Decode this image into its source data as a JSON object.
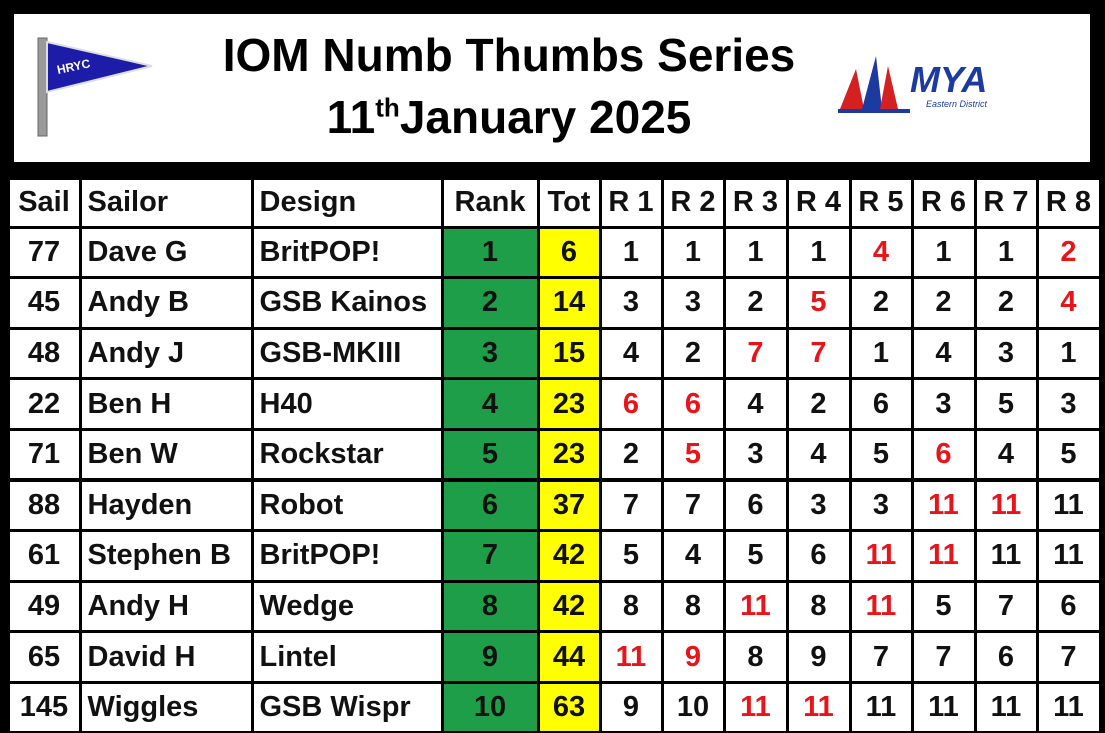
{
  "header": {
    "title": "IOM Numb Thumbs Series",
    "date": {
      "day": "11",
      "suffix": "th",
      "rest": "January 2025"
    },
    "club_logo": "HRYC",
    "association_logo": {
      "name": "MYA",
      "region": "Eastern District"
    }
  },
  "table": {
    "columns": [
      "Sail",
      "Sailor",
      "Design",
      "Rank",
      "Tot",
      "R 1",
      "R 2",
      "R 3",
      "R 4",
      "R 5",
      "R 6",
      "R 7",
      "R 8"
    ],
    "rank_color": "#1e9e48",
    "total_color": "#ffff00",
    "discard_color": "#e8141a",
    "rows": [
      {
        "cells": [
          77,
          "Dave G",
          "BritPOP!",
          1,
          6,
          1,
          1,
          1,
          1,
          4,
          1,
          1,
          2
        ],
        "discarded": [
          false,
          false,
          false,
          false,
          true,
          false,
          false,
          true
        ]
      },
      {
        "cells": [
          45,
          "Andy B",
          "GSB Kainos",
          2,
          14,
          3,
          3,
          2,
          5,
          2,
          2,
          2,
          4
        ],
        "discarded": [
          false,
          false,
          false,
          true,
          false,
          false,
          false,
          true
        ]
      },
      {
        "cells": [
          48,
          "Andy J",
          "GSB-MKIII",
          3,
          15,
          4,
          2,
          7,
          7,
          1,
          4,
          3,
          1
        ],
        "discarded": [
          false,
          false,
          true,
          true,
          false,
          false,
          false,
          false
        ]
      },
      {
        "cells": [
          22,
          "Ben H",
          "H40",
          4,
          23,
          6,
          6,
          4,
          2,
          6,
          3,
          5,
          3
        ],
        "discarded": [
          true,
          true,
          false,
          false,
          false,
          false,
          false,
          false
        ]
      },
      {
        "cells": [
          71,
          "Ben W",
          "Rockstar",
          5,
          23,
          2,
          5,
          3,
          4,
          5,
          6,
          4,
          5
        ],
        "discarded": [
          false,
          true,
          false,
          false,
          false,
          true,
          false,
          false
        ]
      },
      {
        "cells": [
          88,
          "Hayden",
          "Robot",
          6,
          37,
          7,
          7,
          6,
          3,
          3,
          11,
          11,
          11
        ],
        "discarded": [
          false,
          false,
          false,
          false,
          false,
          true,
          true,
          false
        ]
      },
      {
        "cells": [
          61,
          "Stephen B",
          "BritPOP!",
          7,
          42,
          5,
          4,
          5,
          6,
          11,
          11,
          11,
          11
        ],
        "discarded": [
          false,
          false,
          false,
          false,
          true,
          true,
          false,
          false
        ]
      },
      {
        "cells": [
          49,
          "Andy H",
          "Wedge",
          8,
          42,
          8,
          8,
          11,
          8,
          11,
          5,
          7,
          6
        ],
        "discarded": [
          false,
          false,
          true,
          false,
          true,
          false,
          false,
          false
        ]
      },
      {
        "cells": [
          65,
          "David H",
          "Lintel",
          9,
          44,
          11,
          9,
          8,
          9,
          7,
          7,
          6,
          7
        ],
        "discarded": [
          true,
          true,
          false,
          false,
          false,
          false,
          false,
          false
        ]
      },
      {
        "cells": [
          145,
          "Wiggles",
          "GSB Wispr",
          10,
          63,
          9,
          10,
          11,
          11,
          11,
          11,
          11,
          11
        ],
        "discarded": [
          false,
          false,
          true,
          true,
          false,
          false,
          false,
          false
        ]
      }
    ]
  }
}
